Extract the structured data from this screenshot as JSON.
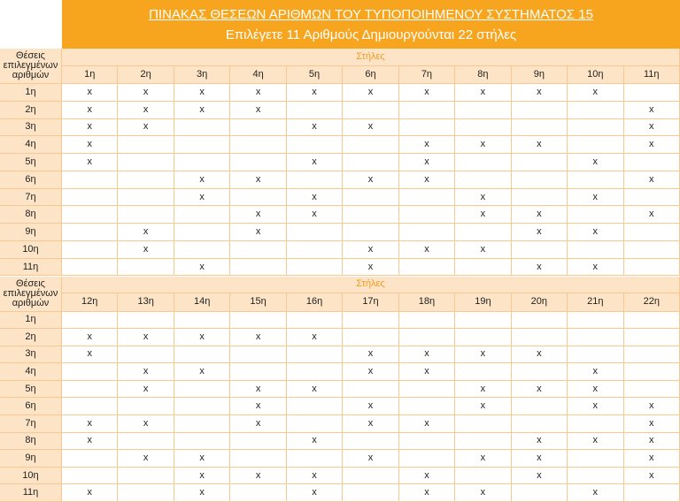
{
  "header": {
    "title": "ΠΙΝΑΚΑΣ ΘΕΣΕΩΝ ΑΡΙΘΜΩΝ ΤΟΥ ΤΥΠΟΠΟΙΗΜΕΝΟΥ ΣΥΣΤΗΜΑΤΟΣ 15",
    "subtitle": "Επιλέγετε 11 Αριθμούς Δημιουργούνται 22 στήλες"
  },
  "sections": [
    {
      "row_header": "Θέσεις επιλεγμένων αριθμών",
      "group_label": "Στήλες",
      "columns": [
        "1η",
        "2η",
        "3η",
        "4η",
        "5η",
        "6η",
        "7η",
        "8η",
        "9η",
        "10η",
        "11η"
      ],
      "rows": [
        {
          "label": "1η",
          "cells": [
            "x",
            "x",
            "x",
            "x",
            "x",
            "x",
            "x",
            "x",
            "x",
            "x",
            null
          ]
        },
        {
          "label": "2η",
          "cells": [
            "x",
            "x",
            "x",
            "x",
            null,
            null,
            null,
            null,
            null,
            null,
            "x"
          ]
        },
        {
          "label": "3η",
          "cells": [
            "x",
            "x",
            null,
            null,
            "x",
            "x",
            null,
            null,
            null,
            null,
            "x"
          ]
        },
        {
          "label": "4η",
          "cells": [
            "x",
            null,
            null,
            null,
            null,
            null,
            "x",
            "x",
            "x",
            null,
            "x"
          ]
        },
        {
          "label": "5η",
          "cells": [
            "x",
            null,
            null,
            null,
            "x",
            null,
            "x",
            null,
            null,
            "x",
            null
          ]
        },
        {
          "label": "6η",
          "cells": [
            null,
            null,
            "x",
            "x",
            null,
            "x",
            "x",
            null,
            null,
            null,
            "x"
          ]
        },
        {
          "label": "7η",
          "cells": [
            null,
            null,
            "x",
            null,
            "x",
            null,
            null,
            "x",
            null,
            "x",
            null
          ]
        },
        {
          "label": "8η",
          "cells": [
            null,
            null,
            null,
            "x",
            "x",
            null,
            null,
            "x",
            "x",
            null,
            "x"
          ]
        },
        {
          "label": "9η",
          "cells": [
            null,
            "x",
            null,
            "x",
            null,
            null,
            null,
            null,
            "x",
            "x",
            null
          ]
        },
        {
          "label": "10η",
          "cells": [
            null,
            "x",
            null,
            null,
            null,
            "x",
            "x",
            "x",
            null,
            null,
            null
          ]
        },
        {
          "label": "11η",
          "cells": [
            null,
            null,
            "x",
            null,
            null,
            "x",
            null,
            null,
            "x",
            "x",
            null
          ]
        }
      ]
    },
    {
      "row_header": "Θέσεις επιλεγμένων αριθμών",
      "group_label": "Στήλες",
      "columns": [
        "12η",
        "13η",
        "14η",
        "15η",
        "16η",
        "17η",
        "18η",
        "19η",
        "20η",
        "21η",
        "22η"
      ],
      "rows": [
        {
          "label": "1η",
          "cells": [
            null,
            null,
            null,
            null,
            null,
            null,
            null,
            null,
            null,
            null,
            null
          ]
        },
        {
          "label": "2η",
          "cells": [
            "x",
            "x",
            "x",
            "x",
            "x",
            null,
            null,
            null,
            null,
            null,
            null
          ]
        },
        {
          "label": "3η",
          "cells": [
            "x",
            null,
            null,
            null,
            null,
            "x",
            "x",
            "x",
            "x",
            null,
            null
          ]
        },
        {
          "label": "4η",
          "cells": [
            null,
            "x",
            "x",
            null,
            null,
            "x",
            "x",
            null,
            null,
            "x",
            null
          ]
        },
        {
          "label": "5η",
          "cells": [
            null,
            "x",
            null,
            "x",
            "x",
            null,
            null,
            "x",
            "x",
            "x",
            null
          ]
        },
        {
          "label": "6η",
          "cells": [
            null,
            null,
            null,
            "x",
            null,
            "x",
            null,
            "x",
            null,
            "x",
            "x"
          ]
        },
        {
          "label": "7η",
          "cells": [
            "x",
            "x",
            null,
            "x",
            null,
            "x",
            "x",
            null,
            null,
            null,
            "x"
          ]
        },
        {
          "label": "8η",
          "cells": [
            "x",
            null,
            null,
            null,
            "x",
            null,
            null,
            null,
            "x",
            "x",
            "x"
          ]
        },
        {
          "label": "9η",
          "cells": [
            null,
            "x",
            "x",
            null,
            null,
            "x",
            null,
            "x",
            "x",
            null,
            "x"
          ]
        },
        {
          "label": "10η",
          "cells": [
            null,
            null,
            "x",
            "x",
            "x",
            null,
            "x",
            null,
            "x",
            null,
            "x"
          ]
        },
        {
          "label": "11η",
          "cells": [
            "x",
            null,
            "x",
            null,
            "x",
            null,
            "x",
            "x",
            null,
            "x",
            null
          ]
        }
      ]
    }
  ]
}
